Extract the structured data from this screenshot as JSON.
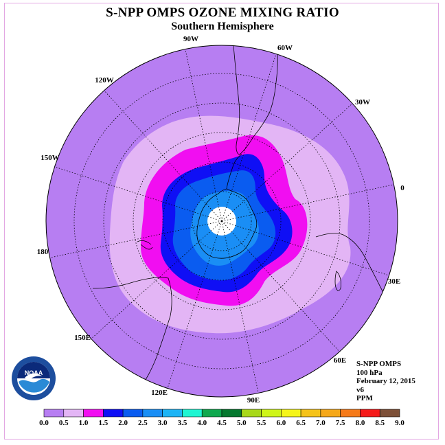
{
  "title": "S-NPP OMPS OZONE MIXING RATIO",
  "subtitle": "Southern Hemisphere",
  "longitude_labels": [
    "90W",
    "60W",
    "30W",
    "0",
    "30E",
    "60E",
    "90E",
    "120E",
    "150E",
    "180",
    "150W",
    "120W"
  ],
  "meta": {
    "instrument": "S-NPP OMPS",
    "pressure": "100 hPa",
    "date": "February 12, 2015",
    "version": "v6",
    "units": "PPM"
  },
  "logo_text": "NOAA",
  "colorbar": {
    "ticks": [
      "0.0",
      "0.5",
      "1.0",
      "1.5",
      "2.0",
      "2.5",
      "3.0",
      "3.5",
      "4.0",
      "4.5",
      "5.0",
      "5.5",
      "6.0",
      "6.5",
      "7.0",
      "7.5",
      "8.0",
      "8.5",
      "9.0"
    ],
    "colors": [
      "#b77ef2",
      "#e3b5f5",
      "#f10ef1",
      "#0f0ff5",
      "#0a5cf0",
      "#1a8ef5",
      "#1eb4f5",
      "#1ff5d2",
      "#0fa84e",
      "#06782f",
      "#a8d81a",
      "#cff51a",
      "#f5f51a",
      "#f5c31a",
      "#f5a81a",
      "#f57a1a",
      "#f51a1a",
      "#7d5038"
    ]
  },
  "colors": {
    "outer_0_0_5": "#b77ef2",
    "band_0_5_1_0": "#e3b5f5",
    "band_1_0_1_5": "#f10ef1",
    "band_1_5_2_0": "#0f0ff5",
    "band_2_0_2_5": "#0a5cf0",
    "band_2_5_3_0": "#1a8ef5",
    "pole_missing": "#ffffff"
  }
}
